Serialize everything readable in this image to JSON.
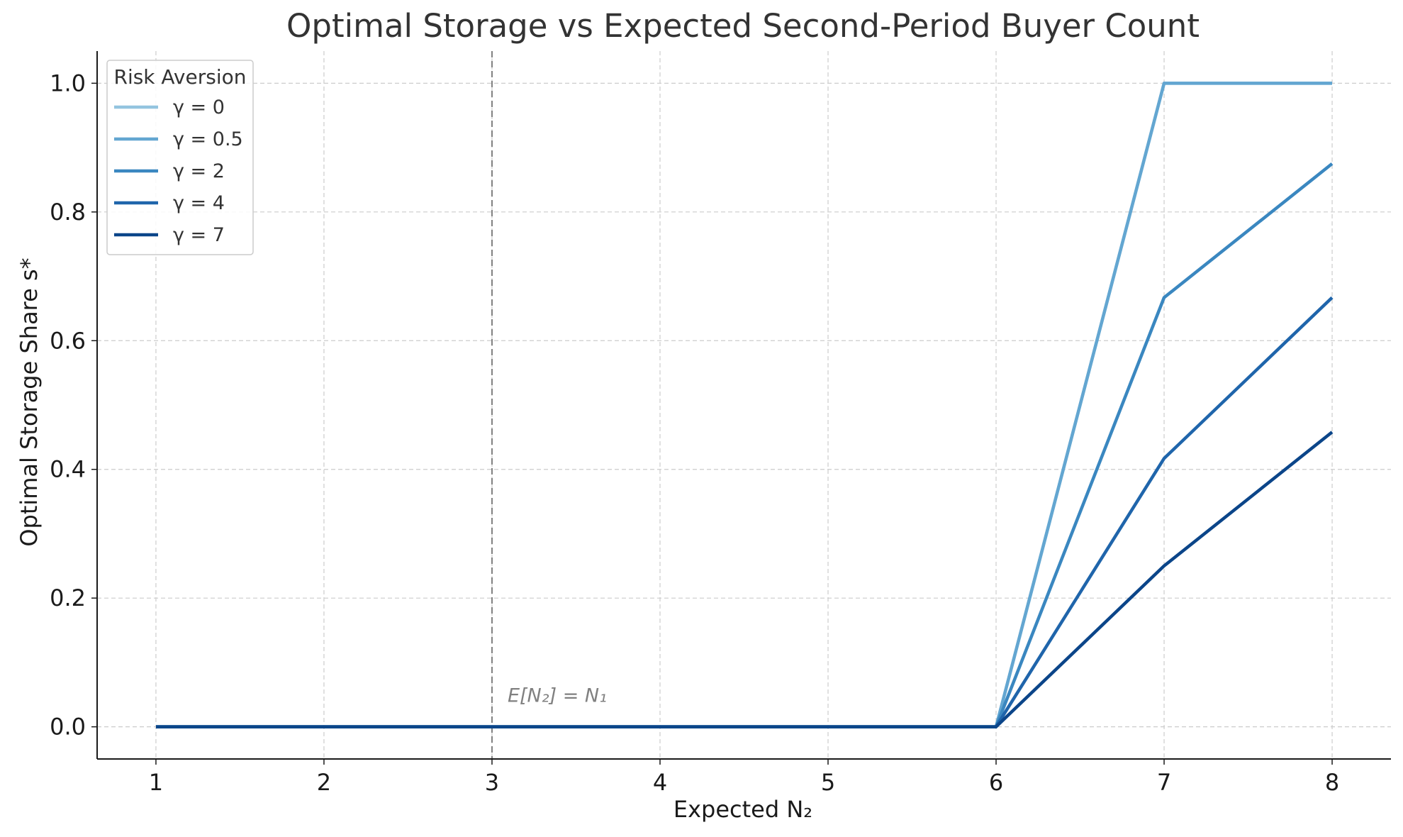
{
  "chart_data": {
    "type": "line",
    "title": "Optimal Storage vs Expected Second-Period Buyer Count",
    "xlabel": "Expected N₂",
    "ylabel": "Optimal Storage Share s*",
    "x": [
      1,
      2,
      3,
      4,
      5,
      6,
      7,
      8
    ],
    "xlim": [
      0.65,
      8.35
    ],
    "ylim": [
      -0.05,
      1.05
    ],
    "xticks": [
      "1",
      "2",
      "3",
      "4",
      "5",
      "6",
      "7",
      "8"
    ],
    "yticks": [
      "0.0",
      "0.2",
      "0.4",
      "0.6",
      "0.8",
      "1.0"
    ],
    "grid": true,
    "legend": {
      "title": "Risk Aversion",
      "placement": "top-left"
    },
    "series": [
      {
        "name": "γ = 0",
        "color": "#93c4df",
        "values": [
          0,
          0,
          0,
          0,
          0,
          0,
          1.0,
          1.0
        ]
      },
      {
        "name": "γ = 0.5",
        "color": "#63a6d1",
        "values": [
          0,
          0,
          0,
          0,
          0,
          0,
          1.0,
          1.0
        ]
      },
      {
        "name": "γ = 2",
        "color": "#3a87c0",
        "values": [
          0,
          0,
          0,
          0,
          0,
          0,
          0.667,
          0.875
        ]
      },
      {
        "name": "γ = 4",
        "color": "#1f65ab",
        "values": [
          0,
          0,
          0,
          0,
          0,
          0,
          0.417,
          0.667
        ]
      },
      {
        "name": "γ = 7",
        "color": "#0b4589",
        "values": [
          0,
          0,
          0,
          0,
          0,
          0,
          0.25,
          0.458
        ]
      }
    ],
    "reference_line": {
      "x": 3,
      "style": "dashed",
      "color": "#808080",
      "label": "E[N₂] = N₁"
    }
  }
}
